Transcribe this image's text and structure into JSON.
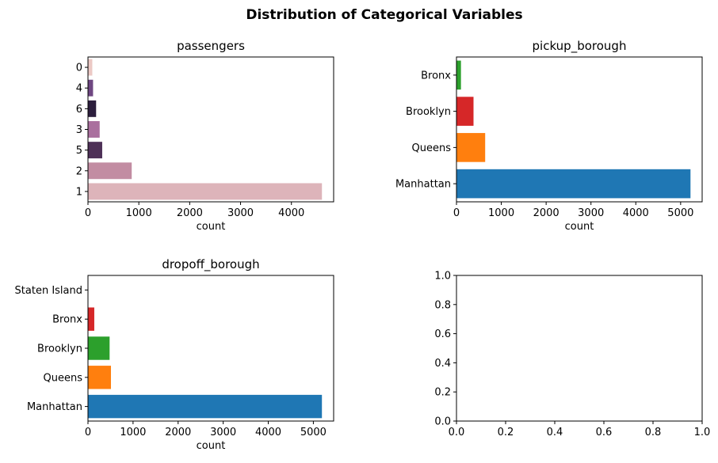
{
  "figure": {
    "title": "Distribution of Categorical Variables"
  },
  "chart_data": [
    {
      "type": "bar",
      "orientation": "horizontal",
      "title": "passengers",
      "xlabel": "count",
      "ylabel": "",
      "xlim": [
        0,
        4830
      ],
      "xticks": [
        0,
        1000,
        2000,
        3000,
        4000
      ],
      "categories": [
        "0",
        "4",
        "6",
        "3",
        "5",
        "2",
        "1"
      ],
      "values": [
        85,
        100,
        160,
        230,
        280,
        860,
        4600
      ],
      "colors": [
        "#ecc9c5",
        "#6f4782",
        "#2c1e3d",
        "#aa6f9e",
        "#4e3057",
        "#c28ca2",
        "#ddb4ba"
      ]
    },
    {
      "type": "bar",
      "orientation": "horizontal",
      "title": "pickup_borough",
      "xlabel": "count",
      "ylabel": "",
      "xlim": [
        0,
        5480
      ],
      "xticks": [
        0,
        1000,
        2000,
        3000,
        4000,
        5000
      ],
      "categories": [
        "Bronx",
        "Brooklyn",
        "Queens",
        "Manhattan"
      ],
      "values": [
        100,
        380,
        640,
        5220
      ],
      "colors": [
        "#2ca02c",
        "#d62728",
        "#ff7f0e",
        "#1f77b4"
      ]
    },
    {
      "type": "bar",
      "orientation": "horizontal",
      "title": "dropoff_borough",
      "xlabel": "count",
      "ylabel": "",
      "xlim": [
        0,
        5450
      ],
      "xticks": [
        0,
        1000,
        2000,
        3000,
        4000,
        5000
      ],
      "categories": [
        "Staten Island",
        "Bronx",
        "Brooklyn",
        "Queens",
        "Manhattan"
      ],
      "values": [
        2,
        140,
        480,
        510,
        5190
      ],
      "colors": [
        "#9467bd",
        "#d62728",
        "#2ca02c",
        "#ff7f0e",
        "#1f77b4"
      ]
    },
    {
      "type": "scatter",
      "title": "",
      "xlabel": "",
      "ylabel": "",
      "xlim": [
        0,
        1
      ],
      "ylim": [
        0,
        1
      ],
      "xticks": [
        "0.0",
        "0.2",
        "0.4",
        "0.6",
        "0.8",
        "1.0"
      ],
      "yticks": [
        "0.0",
        "0.2",
        "0.4",
        "0.6",
        "0.8",
        "1.0"
      ],
      "empty": true
    }
  ]
}
